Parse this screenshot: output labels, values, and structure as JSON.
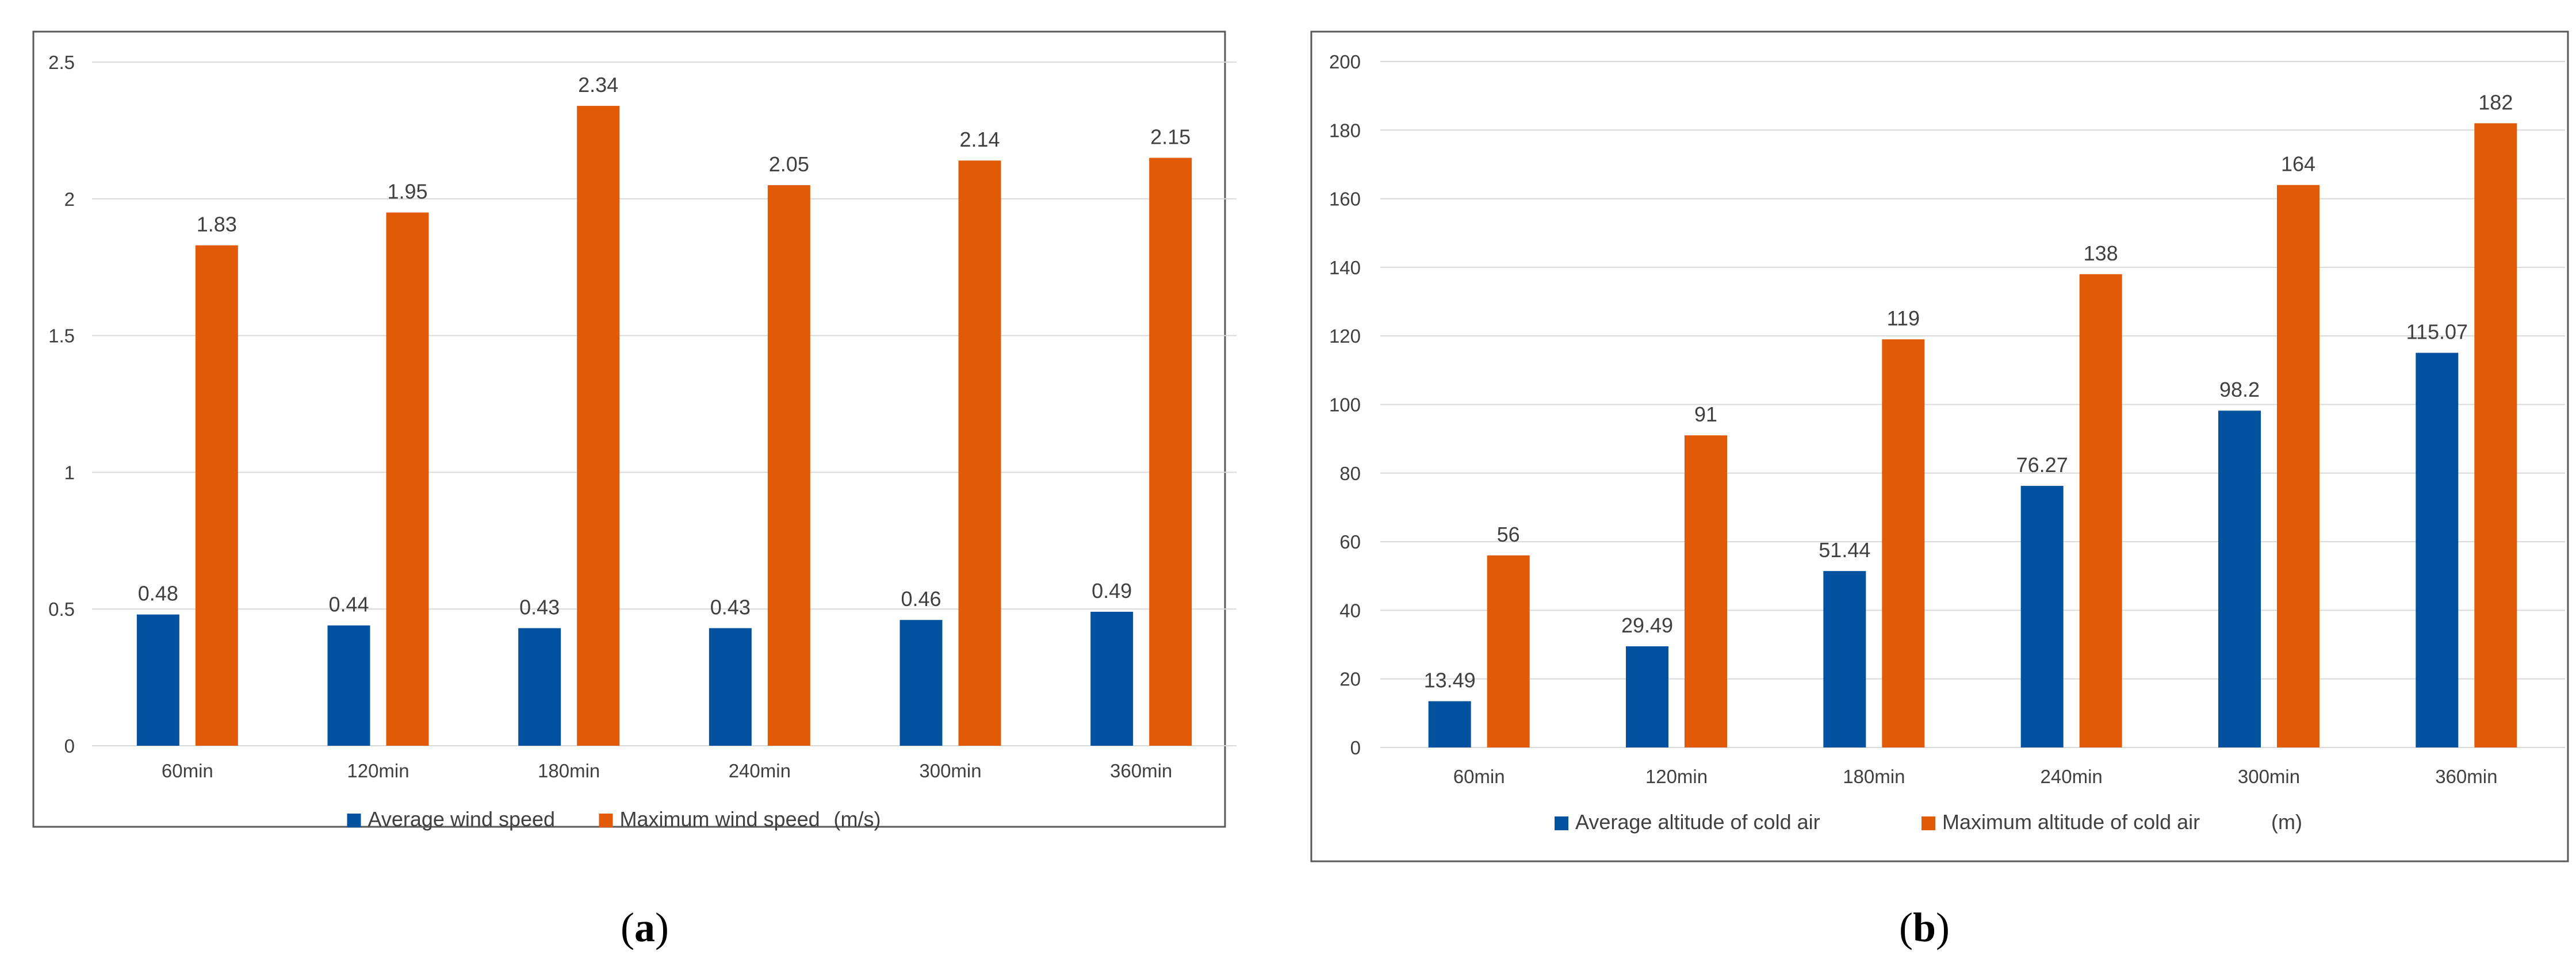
{
  "colors": {
    "average": "#0352A0",
    "maximum": "#E05A08",
    "grid": "#D9D9D9",
    "frame": "#595959"
  },
  "chart_data": [
    {
      "type": "bar",
      "panel": "a",
      "caption": {
        "open": "(",
        "letter": "a",
        "close": ")"
      },
      "categories": [
        "60min",
        "120min",
        "180min",
        "240min",
        "300min",
        "360min"
      ],
      "series": [
        {
          "name": "Average wind speed",
          "values": [
            0.48,
            0.44,
            0.43,
            0.43,
            0.46,
            0.49
          ],
          "labels": [
            "0.48",
            "0.44",
            "0.43",
            "0.43",
            "0.46",
            "0.49"
          ]
        },
        {
          "name": "Maximum wind speed",
          "values": [
            1.83,
            1.95,
            2.34,
            2.05,
            2.14,
            2.15
          ],
          "labels": [
            "1.83",
            "1.95",
            "2.34",
            "2.05",
            "2.14",
            "2.15"
          ]
        }
      ],
      "unit": "(m/s)",
      "ylim": [
        0,
        2.5
      ],
      "yticks": [
        0,
        0.5,
        1,
        1.5,
        2,
        2.5
      ],
      "ytick_labels": [
        "0",
        "0.5",
        "1",
        "1.5",
        "2",
        "2.5"
      ],
      "grid": true,
      "legend": "bottom"
    },
    {
      "type": "bar",
      "panel": "b",
      "caption": {
        "open": "(",
        "letter": "b",
        "close": ")"
      },
      "categories": [
        "60min",
        "120min",
        "180min",
        "240min",
        "300min",
        "360min"
      ],
      "series": [
        {
          "name": "Average altitude of cold air",
          "values": [
            13.49,
            29.49,
            51.44,
            76.27,
            98.2,
            115.07
          ],
          "labels": [
            "13.49",
            "29.49",
            "51.44",
            "76.27",
            "98.2",
            "115.07"
          ]
        },
        {
          "name": "Maximum altitude of cold air",
          "values": [
            56,
            91,
            119,
            138,
            164,
            182
          ],
          "labels": [
            "56",
            "91",
            "119",
            "138",
            "164",
            "182"
          ]
        }
      ],
      "unit": "(m)",
      "ylim": [
        0,
        200
      ],
      "yticks": [
        0,
        20,
        40,
        60,
        80,
        100,
        120,
        140,
        160,
        180,
        200
      ],
      "ytick_labels": [
        "0",
        "20",
        "40",
        "60",
        "80",
        "100",
        "120",
        "140",
        "160",
        "180",
        "200"
      ],
      "grid": true,
      "legend": "bottom"
    }
  ]
}
